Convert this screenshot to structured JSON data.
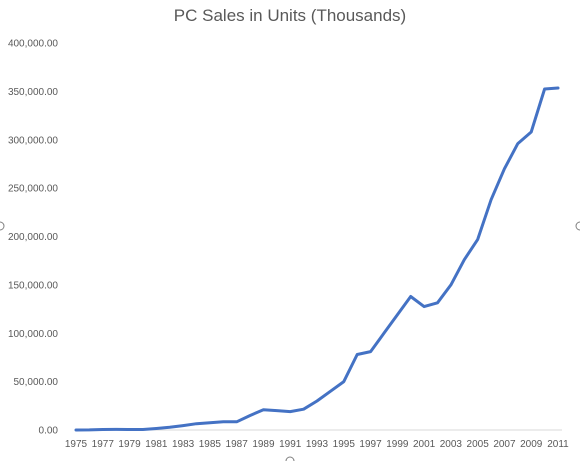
{
  "chart_data": {
    "type": "line",
    "title": "PC Sales in Units (Thousands)",
    "xlabel": "",
    "ylabel": "",
    "x_tick_labels": [
      "1975",
      "1977",
      "1979",
      "1981",
      "1983",
      "1985",
      "1987",
      "1989",
      "1991",
      "1993",
      "1995",
      "1997",
      "1999",
      "2001",
      "2003",
      "2005",
      "2007",
      "2009",
      "2011"
    ],
    "y_tick_labels": [
      "0.00",
      "50,000.00",
      "100,000.00",
      "150,000.00",
      "200,000.00",
      "250,000.00",
      "300,000.00",
      "350,000.00",
      "400,000.00"
    ],
    "ylim": [
      0,
      400000
    ],
    "xlim": [
      1975,
      2011
    ],
    "grid": false,
    "legend": "none",
    "line_color": "#4472C4",
    "series": [
      {
        "x": [
          1975,
          1976,
          1977,
          1978,
          1979,
          1980,
          1981,
          1982,
          1983,
          1984,
          1985,
          1986,
          1987,
          1988,
          1989,
          1990,
          1991,
          1992,
          1993,
          1994,
          1995,
          1996,
          1997,
          1998,
          1999,
          2000,
          2001,
          2002,
          2003,
          2004,
          2005,
          2006,
          2007,
          2008,
          2009,
          2010,
          2011
        ],
        "values": [
          0,
          100,
          500,
          600,
          500,
          500,
          1500,
          2800,
          4500,
          6500,
          7500,
          8500,
          8500,
          15000,
          21000,
          20000,
          19000,
          21500,
          30000,
          40000,
          50000,
          78000,
          81000,
          100000,
          119000,
          138000,
          127500,
          131500,
          150000,
          176000,
          197000,
          238000,
          270000,
          296000,
          308000,
          352500,
          353500
        ]
      }
    ]
  }
}
